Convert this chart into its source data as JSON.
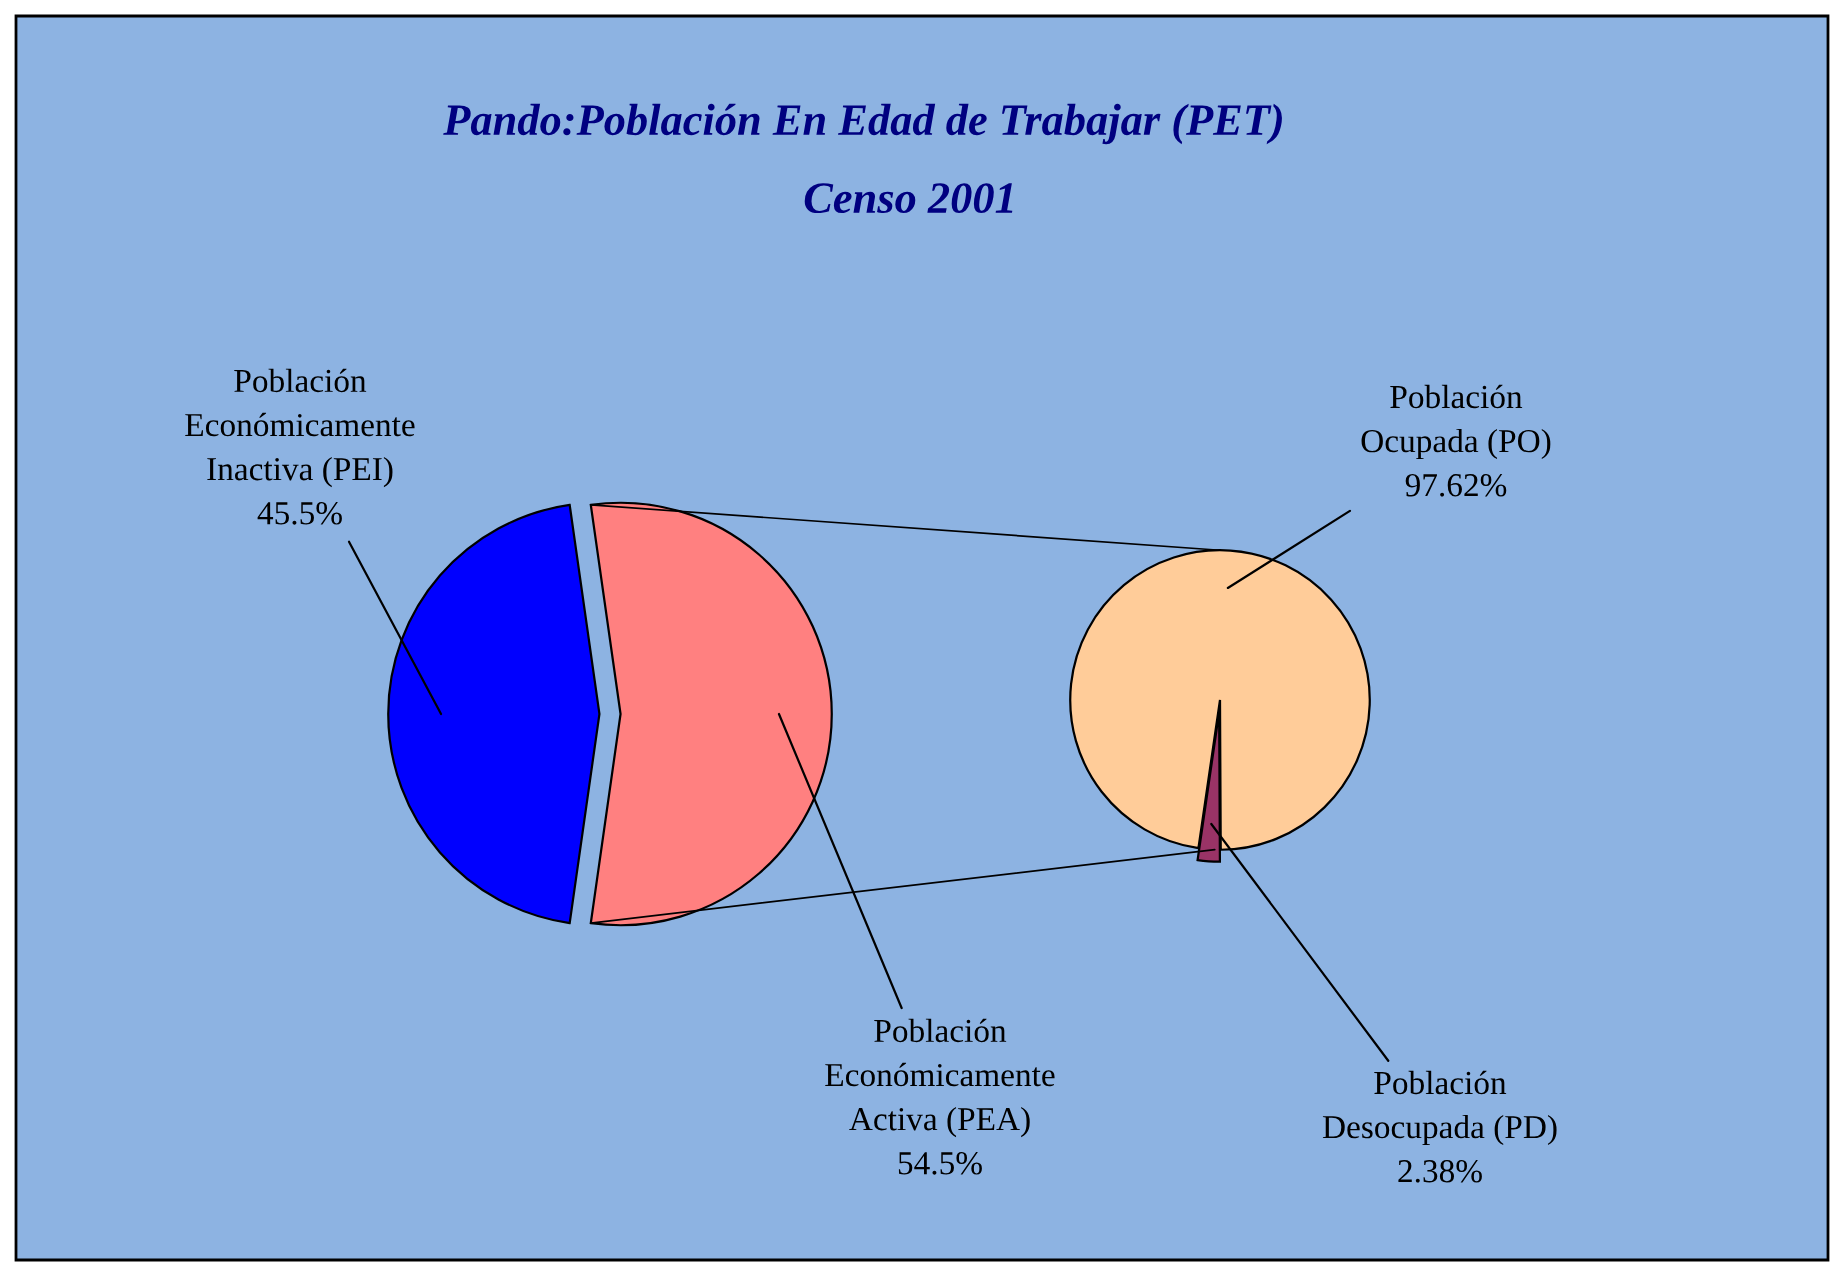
{
  "chart_data": [
    {
      "type": "pie",
      "title": "Pando:Población En Edad de Trabajar (PET)",
      "subtitle": "Censo 2001",
      "categories": [
        "Población\nEconómicamente\nInactiva (PEI)",
        "Población\nEconómicamente\nActiva (PEA)"
      ],
      "values": [
        45.5,
        54.5
      ],
      "colors": [
        "#0000ff",
        "#ff8080"
      ],
      "value_labels": [
        "45.5%",
        "54.5%"
      ]
    },
    {
      "type": "pie",
      "categories": [
        "Población\nOcupada (PO)",
        "Población\nDesocupada (PD)"
      ],
      "values": [
        97.62,
        2.38
      ],
      "colors": [
        "#ffcc99",
        "#993366"
      ],
      "value_labels": [
        "97.62%",
        "2.38%"
      ]
    }
  ]
}
